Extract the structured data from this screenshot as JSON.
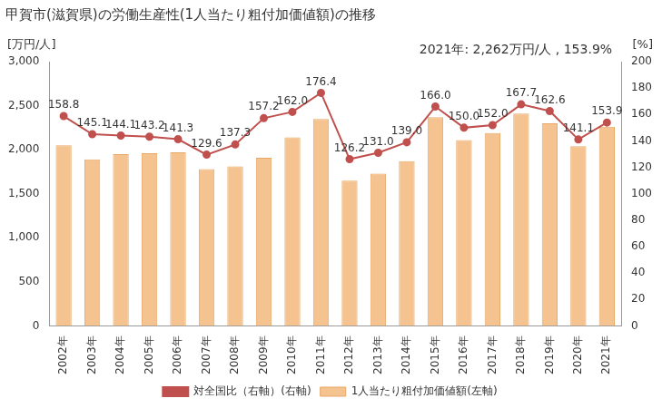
{
  "chart_data": {
    "type": "bar",
    "title": "甲賀市(滋賀県)の労働生産性(1人当たり粗付加価値額)の推移",
    "annotation": "2021年: 2,262万円/人 , 153.9%",
    "y_label": "[万円/人]",
    "y2_label": "[%]",
    "categories": [
      "2002年",
      "2003年",
      "2004年",
      "2005年",
      "2006年",
      "2007年",
      "2008年",
      "2009年",
      "2010年",
      "2011年",
      "2012年",
      "2013年",
      "2014年",
      "2015年",
      "2016年",
      "2017年",
      "2018年",
      "2019年",
      "2020年",
      "2021年"
    ],
    "series": [
      {
        "name": "1人当たり粗付加価値額(左軸)",
        "type": "bar",
        "color": "#f4c38f",
        "values": [
          2050,
          1890,
          1950,
          1960,
          1970,
          1780,
          1810,
          1910,
          2140,
          2350,
          1650,
          1730,
          1870,
          2370,
          2110,
          2190,
          2410,
          2300,
          2040,
          2262
        ]
      },
      {
        "name": "対全国比（右軸）(右軸)",
        "type": "line",
        "axis": "y2",
        "color": "#c0504d",
        "marker": "circle",
        "data_labels": true,
        "values": [
          158.8,
          145.1,
          144.1,
          143.2,
          141.3,
          129.6,
          137.3,
          157.2,
          162.0,
          176.4,
          126.2,
          131.0,
          139.0,
          166.0,
          150.0,
          152.0,
          167.7,
          162.6,
          141.1,
          153.9
        ],
        "value_labels": [
          "158.8",
          "145.1",
          "144.1",
          "143.2",
          "141.3",
          "129.6",
          "137.3",
          "157.2",
          "162.0",
          "176.4",
          "126.2",
          "131.0",
          "139.0",
          "166.0",
          "150.0",
          "152.0",
          "167.7",
          "162.6",
          "141.1",
          "153.9"
        ]
      }
    ],
    "ylim": [
      0,
      3000
    ],
    "yticks": [
      0,
      500,
      {
        "value": 1000,
        "label": "1,000"
      },
      {
        "value": 1500,
        "label": "1,500"
      },
      {
        "value": 2000,
        "label": "2,000"
      },
      {
        "value": 2500,
        "label": "2,500"
      },
      {
        "value": 3000,
        "label": "3,000"
      }
    ],
    "y2lim": [
      0,
      200
    ],
    "y2ticks": [
      0,
      20,
      40,
      60,
      80,
      100,
      120,
      140,
      160,
      180,
      200
    ],
    "grid": false,
    "legend": "bottom"
  }
}
